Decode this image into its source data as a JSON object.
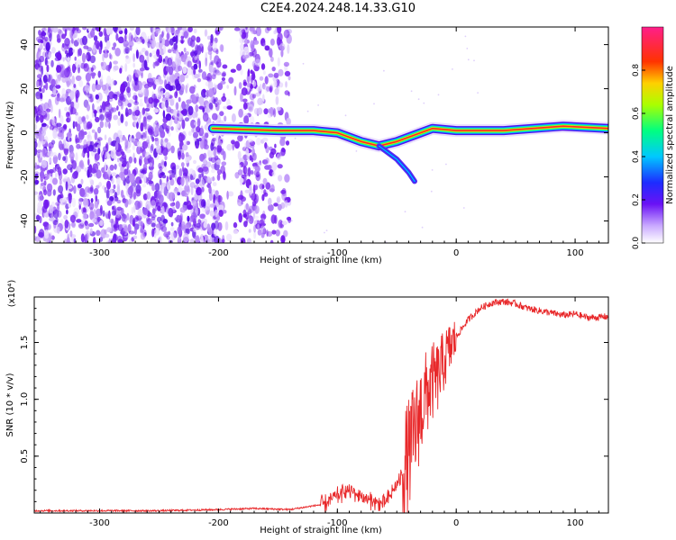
{
  "title": "C2E4.2024.248.14.33.G10",
  "colors": {
    "snr_line": "#e8282a",
    "noise": "#7a2cf0",
    "track_core": "#ff2a2a",
    "frame": "#000000"
  },
  "chart_data": [
    {
      "type": "heatmap",
      "xlabel": "Height of straight line (km)",
      "ylabel": "Frequency (Hz)",
      "xlim": [
        -355,
        128
      ],
      "ylim": [
        -50,
        48
      ],
      "xticks": [
        -300,
        -200,
        -100,
        0,
        100
      ],
      "yticks": [
        -40,
        -20,
        0,
        20,
        40
      ],
      "colorbar": {
        "label": "Normalized spectral amplitude",
        "range": [
          0,
          1
        ],
        "ticks": [
          "0.0",
          "0.2",
          "0.4",
          "0.6",
          "0.8"
        ]
      },
      "noise_region": {
        "x_range": [
          -355,
          -140
        ],
        "gap": [
          -195,
          -182
        ]
      },
      "track": [
        {
          "x": -205,
          "f": 2
        },
        {
          "x": -150,
          "f": 1
        },
        {
          "x": -120,
          "f": 1
        },
        {
          "x": -100,
          "f": 0
        },
        {
          "x": -80,
          "f": -4
        },
        {
          "x": -65,
          "f": -6
        },
        {
          "x": -50,
          "f": -4
        },
        {
          "x": -35,
          "f": -1
        },
        {
          "x": -20,
          "f": 2
        },
        {
          "x": 0,
          "f": 1
        },
        {
          "x": 40,
          "f": 1
        },
        {
          "x": 90,
          "f": 3
        },
        {
          "x": 128,
          "f": 2
        }
      ],
      "branch": [
        {
          "x": -65,
          "f": -6
        },
        {
          "x": -50,
          "f": -12
        },
        {
          "x": -40,
          "f": -18
        },
        {
          "x": -35,
          "f": -22
        }
      ]
    },
    {
      "type": "line",
      "xlabel": "Height of straight line (km)",
      "ylabel": "SNR (10 * v/v)",
      "yscale_label": "(x10⁴)",
      "xlim": [
        -355,
        128
      ],
      "ylim": [
        0,
        1.9
      ],
      "xticks": [
        -300,
        -200,
        -100,
        0,
        100
      ],
      "yticks": [
        0.5,
        1.0,
        1.5
      ],
      "ytick_labels": [
        "0.5",
        "1.0",
        "1.5"
      ],
      "series": [
        {
          "x": [
            -355,
            -300,
            -250,
            -200,
            -170,
            -140,
            -110,
            -100,
            -90,
            -80,
            -70,
            -60,
            -50,
            -45,
            -40,
            -35,
            -30,
            -25,
            -20,
            -15,
            -10,
            -5,
            0,
            10,
            20,
            30,
            40,
            50,
            60,
            70,
            80,
            90,
            100,
            110,
            120,
            128
          ],
          "y": [
            0.02,
            0.02,
            0.02,
            0.03,
            0.04,
            0.03,
            0.08,
            0.15,
            0.2,
            0.15,
            0.1,
            0.08,
            0.25,
            0.35,
            0.5,
            0.7,
            0.9,
            1.05,
            1.15,
            1.2,
            1.35,
            1.45,
            1.55,
            1.7,
            1.8,
            1.85,
            1.86,
            1.84,
            1.8,
            1.78,
            1.76,
            1.74,
            1.75,
            1.72,
            1.72,
            1.73
          ]
        }
      ]
    }
  ]
}
